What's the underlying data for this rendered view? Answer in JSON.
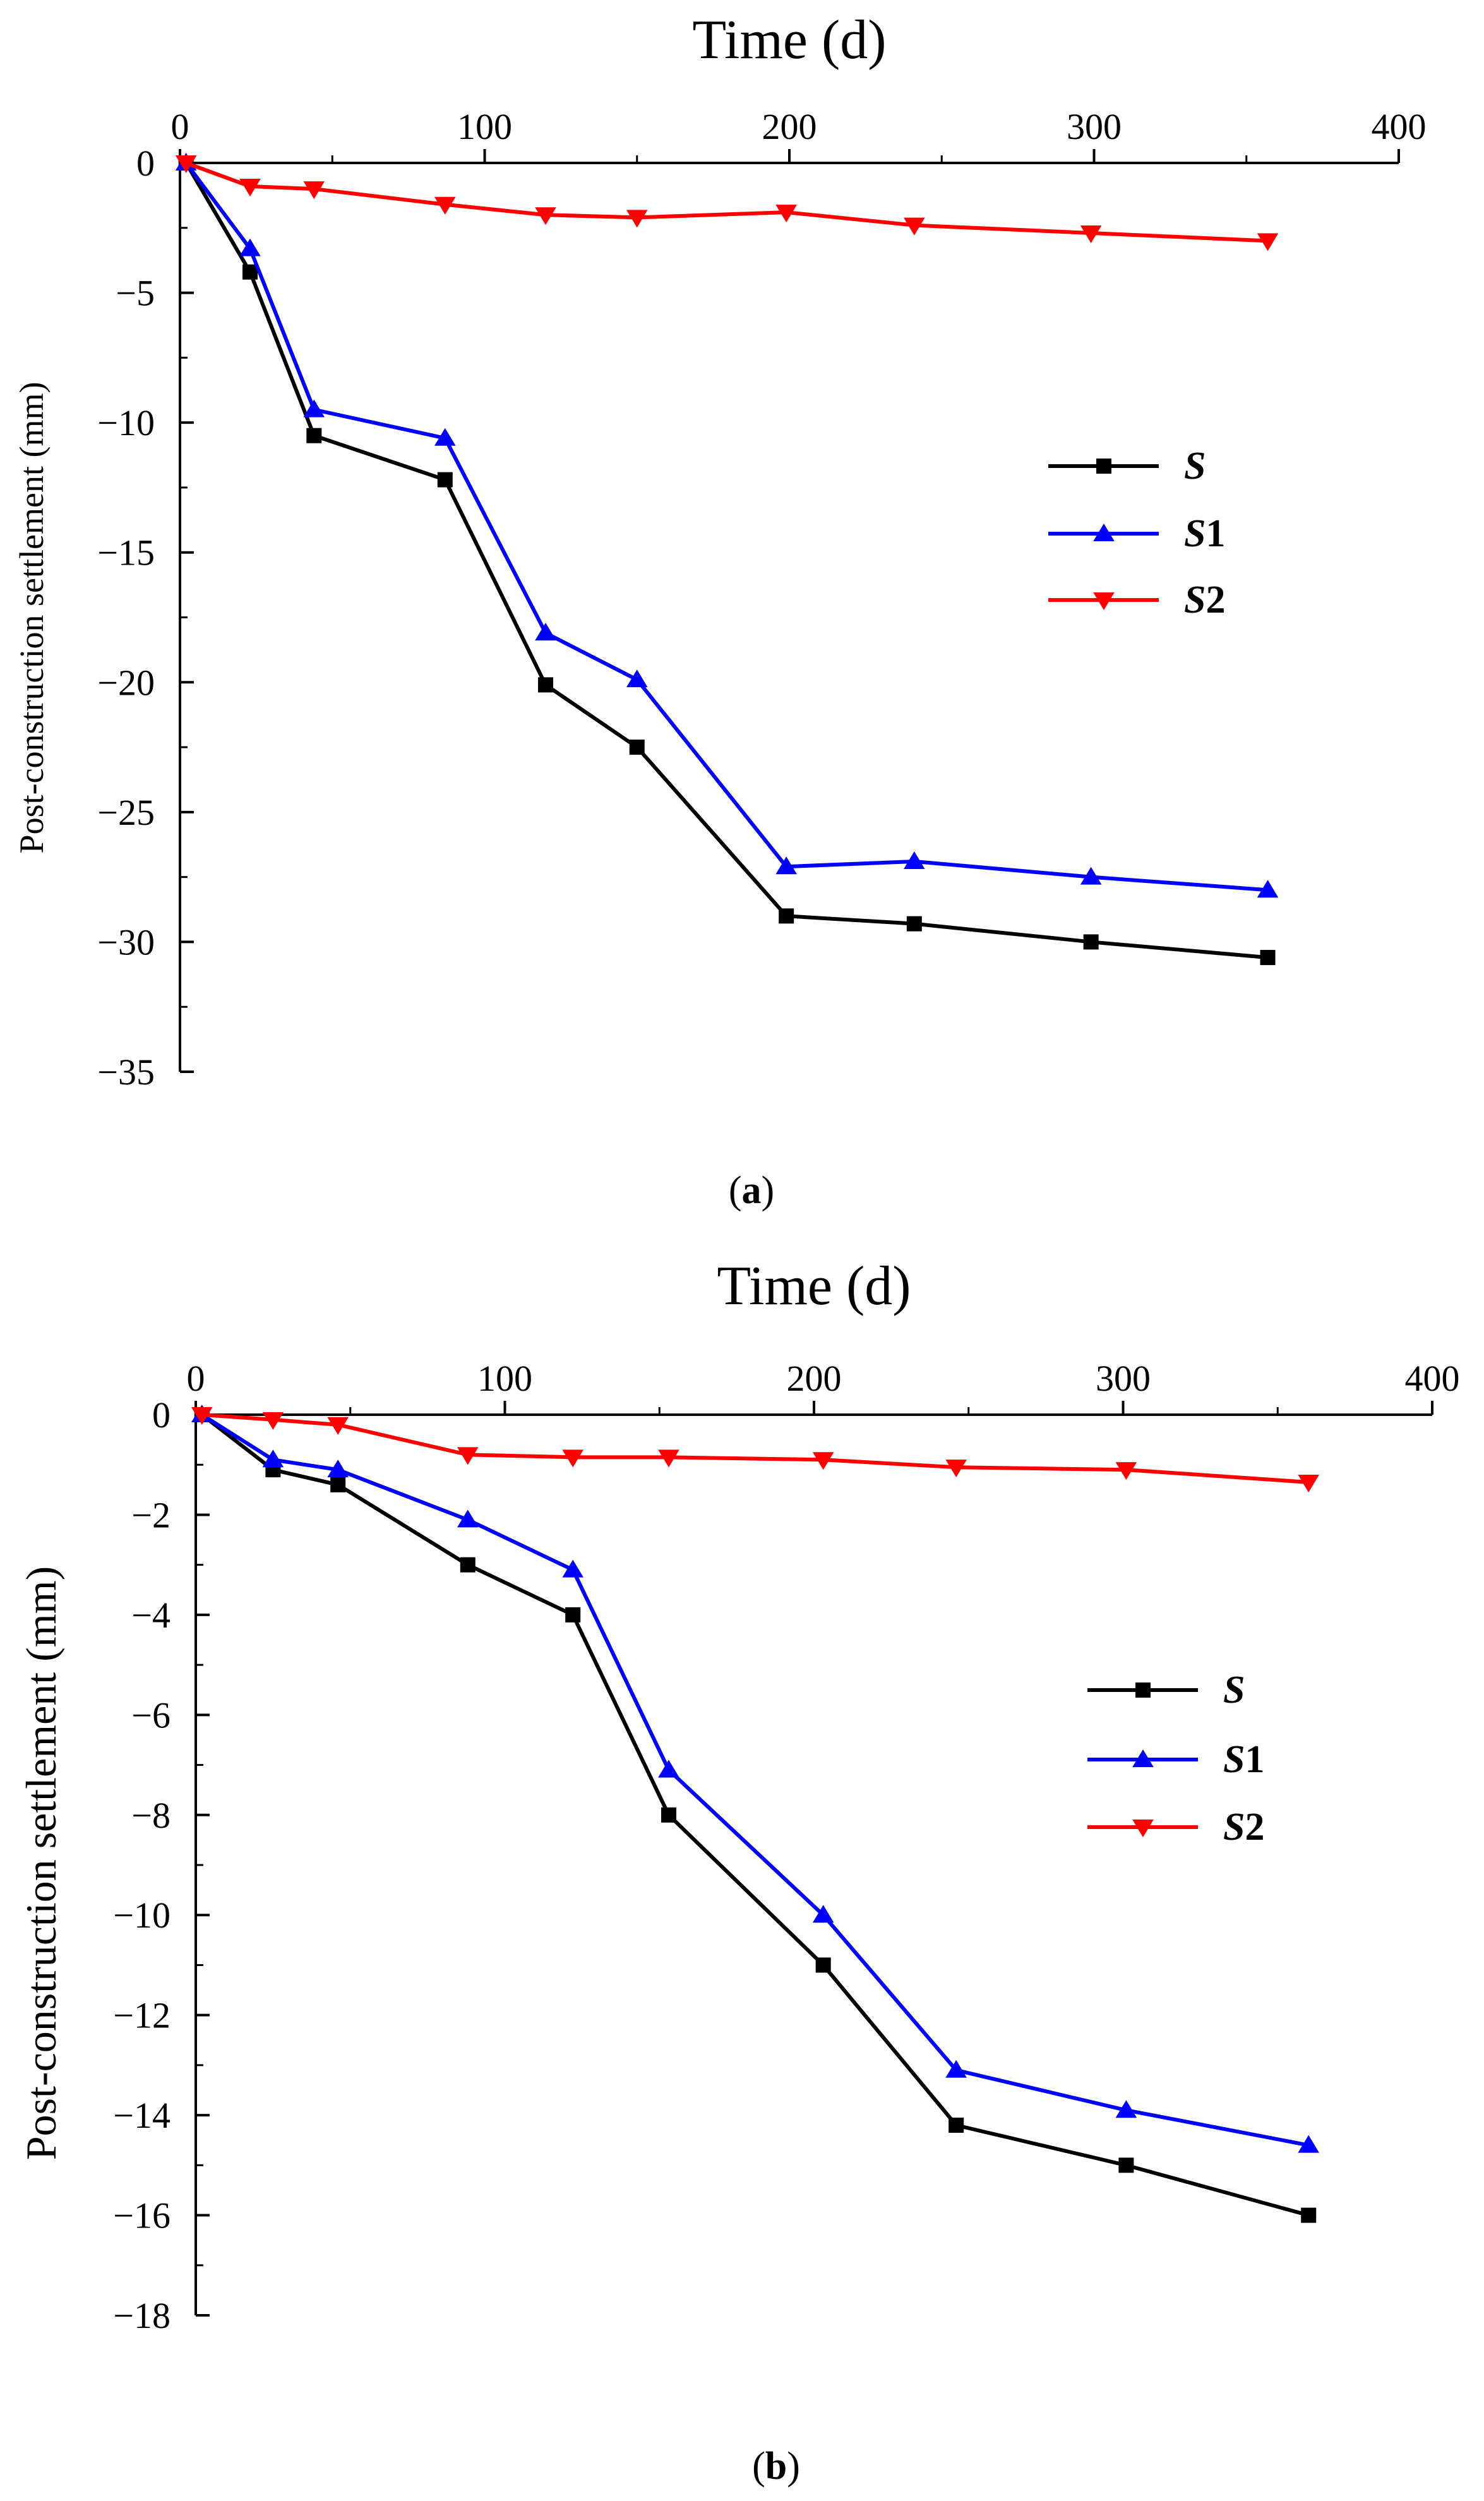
{
  "chart_data": [
    {
      "type": "line",
      "title": "",
      "xlabel": "Time (d)",
      "ylabel": "Post-construction settlement (mm)",
      "xlim": [
        0,
        400
      ],
      "ylim": [
        -35,
        0
      ],
      "xticks": [
        0,
        100,
        200,
        300,
        400
      ],
      "yticks": [
        0,
        -5,
        -10,
        -15,
        -20,
        -25,
        -30,
        -35
      ],
      "xtick_labels": [
        "0",
        "100",
        "200",
        "300",
        "400"
      ],
      "ytick_labels": [
        "0",
        "−5",
        "−10",
        "−15",
        "−20",
        "−25",
        "−30",
        "−35"
      ],
      "grid": false,
      "legend_position": "right",
      "caption": "(a)",
      "caption_letter": "a",
      "series": [
        {
          "name": "S",
          "italic": "S",
          "suffix": "",
          "color": "#000000",
          "marker": "square",
          "x": [
            2,
            23,
            44,
            87,
            120,
            150,
            199,
            241,
            299,
            357
          ],
          "y": [
            0,
            -4.2,
            -10.5,
            -12.2,
            -20.1,
            -22.5,
            -29.0,
            -29.3,
            -30.0,
            -30.6
          ]
        },
        {
          "name": "S1",
          "italic": "S",
          "suffix": "1",
          "color": "#0000ff",
          "marker": "triangle-up",
          "x": [
            2,
            23,
            44,
            87,
            120,
            150,
            199,
            241,
            299,
            357
          ],
          "y": [
            0,
            -3.3,
            -9.5,
            -10.6,
            -18.1,
            -19.9,
            -27.1,
            -26.9,
            -27.5,
            -28.0
          ]
        },
        {
          "name": "S2",
          "italic": "S",
          "suffix": "2",
          "color": "#ff0000",
          "marker": "triangle-down",
          "x": [
            2,
            23,
            44,
            87,
            120,
            150,
            199,
            241,
            299,
            357
          ],
          "y": [
            0,
            -0.9,
            -1.0,
            -1.6,
            -2.0,
            -2.1,
            -1.9,
            -2.4,
            -2.7,
            -3.0
          ]
        }
      ]
    },
    {
      "type": "line",
      "title": "",
      "xlabel": "Time (d)",
      "ylabel": "Post-construction settlement (mm)",
      "xlim": [
        0,
        400
      ],
      "ylim": [
        -18,
        0
      ],
      "xticks": [
        0,
        100,
        200,
        300,
        400
      ],
      "yticks": [
        0,
        -2,
        -4,
        -6,
        -8,
        -10,
        -12,
        -14,
        -16,
        -18
      ],
      "xtick_labels": [
        "0",
        "100",
        "200",
        "300",
        "400"
      ],
      "ytick_labels": [
        "0",
        "−2",
        "−4",
        "−6",
        "−8",
        "−10",
        "−12",
        "−14",
        "−16",
        "−18"
      ],
      "grid": false,
      "legend_position": "right",
      "caption": "(b)",
      "caption_letter": "b",
      "series": [
        {
          "name": "S",
          "italic": "S",
          "suffix": "",
          "color": "#000000",
          "marker": "square",
          "x": [
            2,
            25,
            46,
            88,
            122,
            153,
            203,
            246,
            301,
            360
          ],
          "y": [
            0,
            -1.1,
            -1.4,
            -3.0,
            -4.0,
            -8.0,
            -11.0,
            -14.2,
            -15.0,
            -16.0
          ]
        },
        {
          "name": "S1",
          "italic": "S",
          "suffix": "1",
          "color": "#0000ff",
          "marker": "triangle-up",
          "x": [
            2,
            25,
            46,
            88,
            122,
            153,
            203,
            246,
            301,
            360
          ],
          "y": [
            0,
            -0.9,
            -1.1,
            -2.1,
            -3.1,
            -7.1,
            -10.0,
            -13.1,
            -13.9,
            -14.6
          ]
        },
        {
          "name": "S2",
          "italic": "S",
          "suffix": "2",
          "color": "#ff0000",
          "marker": "triangle-down",
          "x": [
            2,
            25,
            46,
            88,
            122,
            153,
            203,
            246,
            301,
            360
          ],
          "y": [
            0,
            -0.1,
            -0.2,
            -0.8,
            -0.85,
            -0.85,
            -0.9,
            -1.05,
            -1.1,
            -1.35
          ]
        }
      ]
    }
  ]
}
